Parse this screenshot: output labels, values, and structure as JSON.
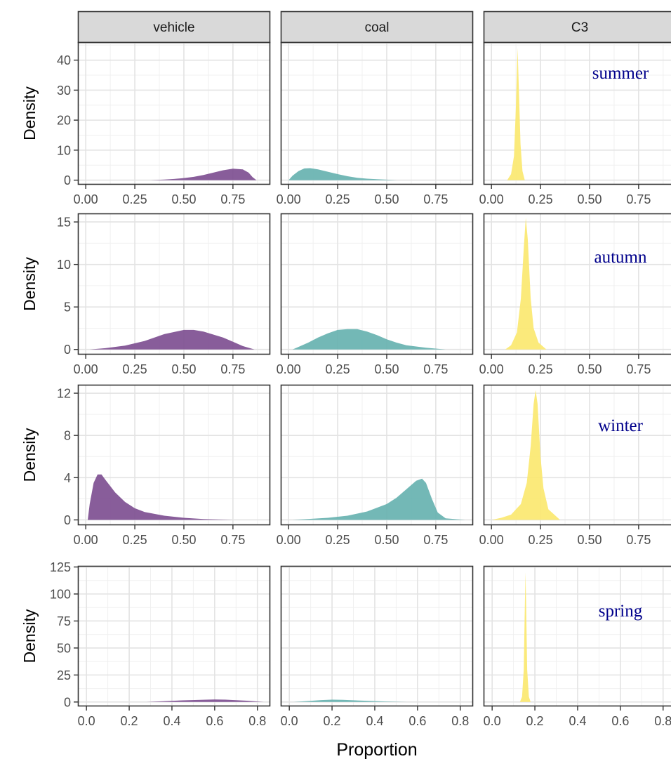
{
  "chart_data": {
    "type": "area",
    "subtype": "density facet grid",
    "xlabel": "Proportion",
    "ylabel": "Density",
    "grid": true,
    "legend": "none",
    "columns": [
      "vehicle",
      "coal",
      "C3"
    ],
    "series_colors": {
      "vehicle": "#7e4f91",
      "coal": "#67b2b0",
      "C3": "#fbe870"
    },
    "season_label_color": "#00008b",
    "strip_fill": "#d9d9d9",
    "rows": [
      {
        "season": "summer",
        "ylim": [
          -1.5,
          46
        ],
        "yticks": [
          0,
          10,
          20,
          30,
          40
        ],
        "xlim": [
          -0.04,
          0.94
        ],
        "xticks": [
          0,
          0.25,
          0.5,
          0.75
        ],
        "xtick_labels": [
          "0.00",
          "0.25",
          "0.50",
          "0.75"
        ],
        "panels": [
          {
            "name": "vehicle",
            "points": [
              [
                0.33,
                0
              ],
              [
                0.4,
                0.2
              ],
              [
                0.45,
                0.4
              ],
              [
                0.5,
                0.7
              ],
              [
                0.55,
                1.1
              ],
              [
                0.6,
                1.7
              ],
              [
                0.65,
                2.5
              ],
              [
                0.7,
                3.3
              ],
              [
                0.75,
                3.8
              ],
              [
                0.8,
                3.6
              ],
              [
                0.83,
                2.5
              ],
              [
                0.85,
                1.0
              ],
              [
                0.87,
                0
              ]
            ]
          },
          {
            "name": "coal",
            "points": [
              [
                0,
                0
              ],
              [
                0.02,
                1.5
              ],
              [
                0.05,
                3.0
              ],
              [
                0.08,
                3.9
              ],
              [
                0.11,
                4.0
              ],
              [
                0.15,
                3.6
              ],
              [
                0.2,
                2.8
              ],
              [
                0.25,
                2.0
              ],
              [
                0.3,
                1.3
              ],
              [
                0.35,
                0.8
              ],
              [
                0.4,
                0.5
              ],
              [
                0.45,
                0.3
              ],
              [
                0.5,
                0.15
              ],
              [
                0.55,
                0
              ]
            ]
          },
          {
            "name": "C3",
            "points": [
              [
                0.08,
                0
              ],
              [
                0.1,
                2
              ],
              [
                0.115,
                8
              ],
              [
                0.125,
                25
              ],
              [
                0.133,
                44
              ],
              [
                0.14,
                30
              ],
              [
                0.148,
                12
              ],
              [
                0.158,
                3
              ],
              [
                0.17,
                0
              ]
            ]
          }
        ]
      },
      {
        "season": "autumn",
        "ylim": [
          -0.6,
          16
        ],
        "yticks": [
          0,
          5,
          10,
          15
        ],
        "xlim": [
          -0.04,
          0.94
        ],
        "xticks": [
          0,
          0.25,
          0.5,
          0.75
        ],
        "xtick_labels": [
          "0.00",
          "0.25",
          "0.50",
          "0.75"
        ],
        "panels": [
          {
            "name": "vehicle",
            "points": [
              [
                0.02,
                0
              ],
              [
                0.1,
                0.15
              ],
              [
                0.2,
                0.45
              ],
              [
                0.3,
                1.0
              ],
              [
                0.4,
                1.8
              ],
              [
                0.5,
                2.3
              ],
              [
                0.55,
                2.3
              ],
              [
                0.6,
                2.1
              ],
              [
                0.7,
                1.4
              ],
              [
                0.75,
                0.9
              ],
              [
                0.8,
                0.4
              ],
              [
                0.86,
                0
              ]
            ]
          },
          {
            "name": "coal",
            "points": [
              [
                0.02,
                0
              ],
              [
                0.05,
                0.3
              ],
              [
                0.1,
                0.8
              ],
              [
                0.15,
                1.4
              ],
              [
                0.2,
                1.9
              ],
              [
                0.25,
                2.3
              ],
              [
                0.3,
                2.4
              ],
              [
                0.35,
                2.4
              ],
              [
                0.4,
                2.1
              ],
              [
                0.45,
                1.7
              ],
              [
                0.5,
                1.2
              ],
              [
                0.55,
                0.8
              ],
              [
                0.6,
                0.5
              ],
              [
                0.7,
                0.2
              ],
              [
                0.8,
                0
              ]
            ]
          },
          {
            "name": "C3",
            "points": [
              [
                0.07,
                0
              ],
              [
                0.1,
                0.5
              ],
              [
                0.13,
                2.0
              ],
              [
                0.15,
                6
              ],
              [
                0.165,
                12
              ],
              [
                0.175,
                15.5
              ],
              [
                0.185,
                13
              ],
              [
                0.2,
                6
              ],
              [
                0.215,
                2.5
              ],
              [
                0.24,
                0.8
              ],
              [
                0.28,
                0
              ]
            ]
          }
        ]
      },
      {
        "season": "winter",
        "ylim": [
          -0.5,
          12.8
        ],
        "yticks": [
          0,
          4,
          8,
          12
        ],
        "xlim": [
          -0.04,
          0.94
        ],
        "xticks": [
          0,
          0.25,
          0.5,
          0.75
        ],
        "xtick_labels": [
          "0.00",
          "0.25",
          "0.50",
          "0.75"
        ],
        "panels": [
          {
            "name": "vehicle",
            "points": [
              [
                0.01,
                0
              ],
              [
                0.02,
                1.5
              ],
              [
                0.04,
                3.5
              ],
              [
                0.06,
                4.3
              ],
              [
                0.08,
                4.3
              ],
              [
                0.1,
                3.8
              ],
              [
                0.15,
                2.6
              ],
              [
                0.2,
                1.7
              ],
              [
                0.25,
                1.1
              ],
              [
                0.3,
                0.75
              ],
              [
                0.4,
                0.4
              ],
              [
                0.5,
                0.2
              ],
              [
                0.6,
                0.08
              ],
              [
                0.75,
                0
              ]
            ]
          },
          {
            "name": "coal",
            "points": [
              [
                0.02,
                0
              ],
              [
                0.2,
                0.2
              ],
              [
                0.3,
                0.4
              ],
              [
                0.4,
                0.8
              ],
              [
                0.5,
                1.5
              ],
              [
                0.55,
                2.1
              ],
              [
                0.6,
                2.9
              ],
              [
                0.65,
                3.7
              ],
              [
                0.68,
                3.9
              ],
              [
                0.7,
                3.5
              ],
              [
                0.73,
                2.0
              ],
              [
                0.76,
                0.7
              ],
              [
                0.8,
                0.15
              ],
              [
                0.9,
                0
              ]
            ]
          },
          {
            "name": "C3",
            "points": [
              [
                0.0,
                0
              ],
              [
                0.05,
                0.2
              ],
              [
                0.1,
                0.5
              ],
              [
                0.15,
                1.5
              ],
              [
                0.18,
                3.5
              ],
              [
                0.2,
                7
              ],
              [
                0.215,
                11
              ],
              [
                0.225,
                12.3
              ],
              [
                0.235,
                11
              ],
              [
                0.25,
                6
              ],
              [
                0.265,
                3
              ],
              [
                0.29,
                1
              ],
              [
                0.35,
                0
              ]
            ]
          }
        ]
      },
      {
        "season": "spring",
        "ylim": [
          -4,
          126
        ],
        "yticks": [
          0,
          25,
          50,
          75,
          100,
          125
        ],
        "xlim": [
          -0.04,
          0.86
        ],
        "xticks": [
          0,
          0.2,
          0.4,
          0.6,
          0.8
        ],
        "xtick_labels": [
          "0.0",
          "0.2",
          "0.4",
          "0.6",
          "0.8"
        ],
        "panels": [
          {
            "name": "vehicle",
            "points": [
              [
                0.28,
                0
              ],
              [
                0.35,
                0.6
              ],
              [
                0.45,
                1.5
              ],
              [
                0.55,
                2.1
              ],
              [
                0.6,
                2.3
              ],
              [
                0.65,
                2.2
              ],
              [
                0.75,
                1.2
              ],
              [
                0.83,
                0
              ]
            ]
          },
          {
            "name": "coal",
            "points": [
              [
                0.02,
                0
              ],
              [
                0.08,
                0.8
              ],
              [
                0.15,
                1.8
              ],
              [
                0.2,
                2.2
              ],
              [
                0.25,
                2.0
              ],
              [
                0.35,
                1.2
              ],
              [
                0.45,
                0.5
              ],
              [
                0.55,
                0.1
              ],
              [
                0.58,
                0
              ]
            ]
          },
          {
            "name": "C3",
            "points": [
              [
                0.13,
                0
              ],
              [
                0.14,
                5
              ],
              [
                0.148,
                30
              ],
              [
                0.153,
                90
              ],
              [
                0.156,
                120
              ],
              [
                0.159,
                90
              ],
              [
                0.164,
                30
              ],
              [
                0.172,
                5
              ],
              [
                0.18,
                0
              ]
            ]
          }
        ]
      }
    ]
  }
}
